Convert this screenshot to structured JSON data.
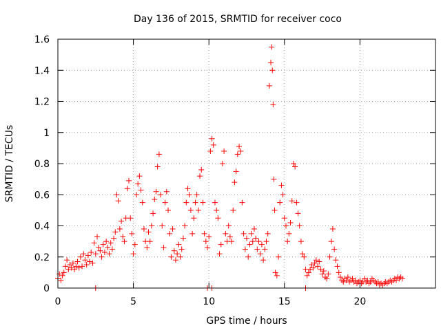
{
  "chart_data": {
    "type": "scatter",
    "title": "Day 136 of 2015, SRMTID for receiver coco",
    "xlabel": "GPS time / hours",
    "ylabel": "SRMTID / TECUs",
    "xlim": [
      0,
      25
    ],
    "ylim": [
      0,
      1.6
    ],
    "xticks": [
      0,
      5,
      10,
      15,
      20
    ],
    "yticks": [
      0,
      0.2,
      0.4,
      0.6,
      0.8,
      1,
      1.2,
      1.4,
      1.6
    ],
    "xtick_labels": [
      "0",
      "5",
      "10",
      "15",
      "20"
    ],
    "ytick_labels": [
      "0",
      "0.2",
      "0.4",
      "0.6",
      "0.8",
      "1",
      "1.2",
      "1.4",
      "1.6"
    ],
    "grid": true,
    "marker": "plus",
    "color": "#ff0000",
    "series": [
      {
        "name": "SRMTID",
        "points": [
          [
            0.0,
            0.06
          ],
          [
            0.1,
            0.09
          ],
          [
            0.2,
            0.05
          ],
          [
            0.3,
            0.08
          ],
          [
            0.4,
            0.1
          ],
          [
            0.5,
            0.14
          ],
          [
            0.6,
            0.18
          ],
          [
            0.7,
            0.12
          ],
          [
            0.8,
            0.15
          ],
          [
            0.9,
            0.13
          ],
          [
            1.0,
            0.16
          ],
          [
            1.1,
            0.12
          ],
          [
            1.2,
            0.14
          ],
          [
            1.3,
            0.17
          ],
          [
            1.4,
            0.13
          ],
          [
            1.5,
            0.2
          ],
          [
            1.6,
            0.14
          ],
          [
            1.7,
            0.22
          ],
          [
            1.8,
            0.18
          ],
          [
            1.9,
            0.15
          ],
          [
            2.0,
            0.21
          ],
          [
            2.1,
            0.17
          ],
          [
            2.2,
            0.23
          ],
          [
            2.3,
            0.16
          ],
          [
            2.4,
            0.29
          ],
          [
            2.5,
            0.22
          ],
          [
            2.6,
            0.33
          ],
          [
            2.7,
            0.26
          ],
          [
            2.8,
            0.24
          ],
          [
            2.9,
            0.2
          ],
          [
            3.0,
            0.28
          ],
          [
            3.1,
            0.23
          ],
          [
            3.2,
            0.3
          ],
          [
            3.3,
            0.26
          ],
          [
            3.4,
            0.22
          ],
          [
            3.5,
            0.29
          ],
          [
            3.6,
            0.25
          ],
          [
            3.7,
            0.32
          ],
          [
            3.8,
            0.36
          ],
          [
            3.9,
            0.6
          ],
          [
            4.0,
            0.56
          ],
          [
            4.1,
            0.38
          ],
          [
            4.2,
            0.43
          ],
          [
            4.3,
            0.33
          ],
          [
            4.4,
            0.3
          ],
          [
            4.5,
            0.45
          ],
          [
            4.6,
            0.64
          ],
          [
            4.7,
            0.69
          ],
          [
            4.8,
            0.45
          ],
          [
            4.9,
            0.35
          ],
          [
            5.0,
            0.22
          ],
          [
            5.1,
            0.28
          ],
          [
            5.2,
            0.6
          ],
          [
            5.3,
            0.67
          ],
          [
            5.4,
            0.72
          ],
          [
            5.5,
            0.63
          ],
          [
            5.6,
            0.55
          ],
          [
            5.7,
            0.38
          ],
          [
            5.8,
            0.3
          ],
          [
            5.9,
            0.26
          ],
          [
            6.0,
            0.36
          ],
          [
            6.1,
            0.3
          ],
          [
            6.2,
            0.4
          ],
          [
            6.3,
            0.48
          ],
          [
            6.4,
            0.57
          ],
          [
            6.5,
            0.62
          ],
          [
            6.6,
            0.78
          ],
          [
            6.7,
            0.86
          ],
          [
            6.8,
            0.6
          ],
          [
            6.9,
            0.4
          ],
          [
            7.0,
            0.26
          ],
          [
            7.1,
            0.55
          ],
          [
            7.2,
            0.62
          ],
          [
            7.3,
            0.5
          ],
          [
            7.4,
            0.35
          ],
          [
            7.5,
            0.2
          ],
          [
            7.6,
            0.38
          ],
          [
            7.7,
            0.24
          ],
          [
            7.8,
            0.18
          ],
          [
            7.9,
            0.22
          ],
          [
            8.0,
            0.28
          ],
          [
            8.1,
            0.2
          ],
          [
            8.2,
            0.25
          ],
          [
            8.3,
            0.32
          ],
          [
            8.4,
            0.4
          ],
          [
            8.5,
            0.55
          ],
          [
            8.6,
            0.64
          ],
          [
            8.7,
            0.6
          ],
          [
            8.8,
            0.5
          ],
          [
            8.9,
            0.35
          ],
          [
            9.0,
            0.45
          ],
          [
            9.1,
            0.55
          ],
          [
            9.2,
            0.6
          ],
          [
            9.3,
            0.5
          ],
          [
            9.4,
            0.72
          ],
          [
            9.5,
            0.76
          ],
          [
            9.6,
            0.55
          ],
          [
            9.7,
            0.35
          ],
          [
            9.8,
            0.3
          ],
          [
            9.9,
            0.26
          ],
          [
            10.0,
            0.33
          ],
          [
            10.1,
            0.88
          ],
          [
            10.2,
            0.96
          ],
          [
            10.3,
            0.92
          ],
          [
            10.4,
            0.55
          ],
          [
            10.5,
            0.5
          ],
          [
            10.6,
            0.45
          ],
          [
            10.7,
            0.22
          ],
          [
            10.8,
            0.28
          ],
          [
            10.9,
            0.8
          ],
          [
            11.0,
            0.88
          ],
          [
            11.1,
            0.35
          ],
          [
            11.2,
            0.3
          ],
          [
            11.3,
            0.4
          ],
          [
            11.4,
            0.33
          ],
          [
            11.5,
            0.3
          ],
          [
            11.6,
            0.5
          ],
          [
            11.7,
            0.68
          ],
          [
            11.8,
            0.75
          ],
          [
            11.9,
            0.86
          ],
          [
            12.0,
            0.91
          ],
          [
            12.1,
            0.88
          ],
          [
            12.2,
            0.55
          ],
          [
            12.3,
            0.35
          ],
          [
            12.4,
            0.25
          ],
          [
            12.5,
            0.32
          ],
          [
            12.6,
            0.2
          ],
          [
            12.7,
            0.28
          ],
          [
            12.8,
            0.35
          ],
          [
            12.9,
            0.3
          ],
          [
            13.0,
            0.38
          ],
          [
            13.1,
            0.32
          ],
          [
            13.2,
            0.25
          ],
          [
            13.3,
            0.3
          ],
          [
            13.4,
            0.22
          ],
          [
            13.5,
            0.28
          ],
          [
            13.6,
            0.18
          ],
          [
            13.7,
            0.25
          ],
          [
            13.8,
            0.3
          ],
          [
            13.9,
            0.35
          ],
          [
            14.0,
            1.3
          ],
          [
            14.1,
            1.45
          ],
          [
            14.15,
            1.55
          ],
          [
            14.2,
            1.4
          ],
          [
            14.25,
            1.18
          ],
          [
            14.3,
            0.7
          ],
          [
            14.35,
            0.5
          ],
          [
            14.4,
            0.1
          ],
          [
            14.5,
            0.08
          ],
          [
            14.6,
            0.2
          ],
          [
            14.7,
            0.55
          ],
          [
            14.8,
            0.66
          ],
          [
            14.9,
            0.6
          ],
          [
            15.0,
            0.45
          ],
          [
            15.1,
            0.4
          ],
          [
            15.2,
            0.3
          ],
          [
            15.3,
            0.35
          ],
          [
            15.4,
            0.42
          ],
          [
            15.5,
            0.56
          ],
          [
            15.6,
            0.8
          ],
          [
            15.7,
            0.78
          ],
          [
            15.8,
            0.55
          ],
          [
            15.9,
            0.48
          ],
          [
            16.0,
            0.4
          ],
          [
            16.1,
            0.3
          ],
          [
            16.2,
            0.22
          ],
          [
            16.3,
            0.2
          ],
          [
            16.4,
            0.12
          ],
          [
            16.5,
            0.08
          ],
          [
            16.6,
            0.1
          ],
          [
            16.7,
            0.12
          ],
          [
            16.8,
            0.15
          ],
          [
            16.9,
            0.13
          ],
          [
            17.0,
            0.16
          ],
          [
            17.1,
            0.18
          ],
          [
            17.2,
            0.14
          ],
          [
            17.3,
            0.17
          ],
          [
            17.4,
            0.12
          ],
          [
            17.5,
            0.09
          ],
          [
            17.6,
            0.11
          ],
          [
            17.7,
            0.07
          ],
          [
            17.8,
            0.06
          ],
          [
            17.9,
            0.09
          ],
          [
            18.0,
            0.2
          ],
          [
            18.1,
            0.3
          ],
          [
            18.2,
            0.38
          ],
          [
            18.3,
            0.25
          ],
          [
            18.4,
            0.18
          ],
          [
            18.5,
            0.14
          ],
          [
            18.6,
            0.1
          ],
          [
            18.7,
            0.07
          ],
          [
            18.8,
            0.05
          ],
          [
            18.9,
            0.04
          ],
          [
            19.0,
            0.06
          ],
          [
            19.1,
            0.05
          ],
          [
            19.2,
            0.07
          ],
          [
            19.3,
            0.04
          ],
          [
            19.4,
            0.05
          ],
          [
            19.5,
            0.06
          ],
          [
            19.6,
            0.04
          ],
          [
            19.7,
            0.05
          ],
          [
            19.8,
            0.03
          ],
          [
            19.9,
            0.04
          ],
          [
            20.0,
            0.05
          ],
          [
            20.1,
            0.03
          ],
          [
            20.2,
            0.04
          ],
          [
            20.3,
            0.06
          ],
          [
            20.4,
            0.04
          ],
          [
            20.5,
            0.05
          ],
          [
            20.6,
            0.03
          ],
          [
            20.7,
            0.04
          ],
          [
            20.8,
            0.06
          ],
          [
            20.9,
            0.05
          ],
          [
            21.0,
            0.04
          ],
          [
            21.1,
            0.03
          ],
          [
            21.2,
            0.04
          ],
          [
            21.3,
            0.02
          ],
          [
            21.4,
            0.03
          ],
          [
            21.5,
            0.02
          ],
          [
            21.6,
            0.03
          ],
          [
            21.7,
            0.04
          ],
          [
            21.8,
            0.03
          ],
          [
            21.9,
            0.04
          ],
          [
            22.0,
            0.05
          ],
          [
            22.1,
            0.04
          ],
          [
            22.2,
            0.05
          ],
          [
            22.3,
            0.06
          ],
          [
            22.4,
            0.05
          ],
          [
            22.5,
            0.07
          ],
          [
            22.6,
            0.06
          ],
          [
            22.7,
            0.07
          ],
          [
            22.8,
            0.06
          ],
          [
            2.5,
            0.0
          ],
          [
            9.9,
            0.0
          ],
          [
            10.2,
            0.0
          ],
          [
            16.4,
            0.0
          ]
        ]
      }
    ]
  }
}
